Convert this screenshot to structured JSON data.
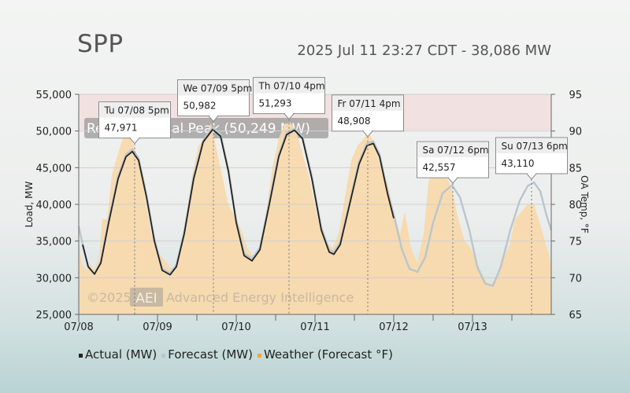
{
  "header": {
    "title": "SPP",
    "status": "2025 Jul 11 23:27 CDT - 38,086 MW"
  },
  "colors": {
    "actual": "#222222",
    "forecast": "#b9c6cc",
    "weather": "#f8d9ad",
    "peak_band": "#f1e1e1"
  },
  "chart_data": {
    "type": "line",
    "x_labels": [
      "07/08",
      "07/09",
      "07/10",
      "07/11",
      "07/12",
      "07/13"
    ],
    "ylabel": "Load, MW",
    "y2label": "OA Temp, °F",
    "ylim": [
      25000,
      55000
    ],
    "y_ticks": [
      "25,000",
      "30,000",
      "35,000",
      "40,000",
      "45,000",
      "50,000",
      "55,000"
    ],
    "y2lim": [
      65,
      95
    ],
    "y2_ticks": [
      "65",
      "70",
      "75",
      "80",
      "85",
      "90",
      "95"
    ],
    "x_range_days": [
      0,
      6
    ],
    "peak_band": {
      "from": 50249,
      "to": 55000,
      "label": "Record Annual Peak (50,249 MW)"
    },
    "watermark": {
      "copyright": "©2025",
      "badge": "AEI",
      "name": "Advanced Energy Intelligence"
    },
    "series": [
      {
        "name": "Actual (MW)",
        "points": [
          [
            0.05,
            34500
          ],
          [
            0.12,
            31500
          ],
          [
            0.2,
            30500
          ],
          [
            0.28,
            32000
          ],
          [
            0.38,
            37500
          ],
          [
            0.5,
            43500
          ],
          [
            0.6,
            46500
          ],
          [
            0.68,
            47200
          ],
          [
            0.76,
            46000
          ],
          [
            0.86,
            41000
          ],
          [
            0.96,
            35000
          ],
          [
            1.06,
            31000
          ],
          [
            1.16,
            30400
          ],
          [
            1.24,
            31500
          ],
          [
            1.34,
            36000
          ],
          [
            1.46,
            43500
          ],
          [
            1.58,
            48500
          ],
          [
            1.7,
            50200
          ],
          [
            1.8,
            49300
          ],
          [
            1.9,
            44500
          ],
          [
            2.0,
            37500
          ],
          [
            2.1,
            33000
          ],
          [
            2.2,
            32300
          ],
          [
            2.3,
            33800
          ],
          [
            2.42,
            40000
          ],
          [
            2.54,
            46500
          ],
          [
            2.64,
            49500
          ],
          [
            2.74,
            50100
          ],
          [
            2.84,
            49000
          ],
          [
            2.96,
            43500
          ],
          [
            3.08,
            36500
          ],
          [
            3.18,
            33500
          ],
          [
            3.24,
            33200
          ],
          [
            3.32,
            34500
          ],
          [
            3.44,
            40000
          ],
          [
            3.56,
            45500
          ],
          [
            3.66,
            48000
          ],
          [
            3.74,
            48300
          ],
          [
            3.82,
            46500
          ],
          [
            3.92,
            41500
          ],
          [
            4.0,
            38100
          ]
        ]
      },
      {
        "name": "Forecast (MW)",
        "points": [
          [
            0.0,
            37000
          ],
          [
            0.05,
            34500
          ],
          [
            0.12,
            31500
          ],
          [
            0.2,
            30500
          ],
          [
            0.28,
            32200
          ],
          [
            0.38,
            37800
          ],
          [
            0.5,
            43800
          ],
          [
            0.6,
            46800
          ],
          [
            0.68,
            47500
          ],
          [
            0.76,
            46300
          ],
          [
            0.86,
            41300
          ],
          [
            0.96,
            35300
          ],
          [
            1.06,
            31200
          ],
          [
            1.16,
            30600
          ],
          [
            1.24,
            31800
          ],
          [
            1.34,
            36300
          ],
          [
            1.46,
            43800
          ],
          [
            1.58,
            48700
          ],
          [
            1.7,
            50500
          ],
          [
            1.8,
            49600
          ],
          [
            1.9,
            44800
          ],
          [
            2.0,
            37800
          ],
          [
            2.1,
            33300
          ],
          [
            2.2,
            32600
          ],
          [
            2.3,
            34100
          ],
          [
            2.42,
            40300
          ],
          [
            2.54,
            46800
          ],
          [
            2.64,
            49800
          ],
          [
            2.74,
            50300
          ],
          [
            2.84,
            49300
          ],
          [
            2.96,
            43800
          ],
          [
            3.08,
            36800
          ],
          [
            3.18,
            33800
          ],
          [
            3.24,
            33500
          ],
          [
            3.32,
            34800
          ],
          [
            3.44,
            40300
          ],
          [
            3.56,
            45800
          ],
          [
            3.66,
            48300
          ],
          [
            3.74,
            48600
          ],
          [
            3.82,
            46800
          ],
          [
            3.92,
            41800
          ],
          [
            4.0,
            38600
          ],
          [
            4.1,
            34000
          ],
          [
            4.2,
            31200
          ],
          [
            4.3,
            30800
          ],
          [
            4.4,
            32800
          ],
          [
            4.5,
            37500
          ],
          [
            4.62,
            41500
          ],
          [
            4.74,
            42600
          ],
          [
            4.84,
            41000
          ],
          [
            4.96,
            36500
          ],
          [
            5.06,
            31500
          ],
          [
            5.16,
            29200
          ],
          [
            5.26,
            28900
          ],
          [
            5.36,
            31500
          ],
          [
            5.48,
            36500
          ],
          [
            5.6,
            40500
          ],
          [
            5.7,
            42500
          ],
          [
            5.78,
            43000
          ],
          [
            5.86,
            41800
          ],
          [
            5.94,
            38500
          ],
          [
            6.0,
            36500
          ]
        ]
      },
      {
        "name": "Weather (Forecast °F)",
        "points": [
          [
            0.0,
            75
          ],
          [
            0.04,
            72
          ],
          [
            0.1,
            71
          ],
          [
            0.14,
            72
          ],
          [
            0.2,
            71
          ],
          [
            0.26,
            73
          ],
          [
            0.3,
            78
          ],
          [
            0.36,
            78
          ],
          [
            0.42,
            84
          ],
          [
            0.5,
            87
          ],
          [
            0.56,
            89
          ],
          [
            0.62,
            90
          ],
          [
            0.7,
            88
          ],
          [
            0.78,
            85
          ],
          [
            0.86,
            80
          ],
          [
            0.92,
            76
          ],
          [
            0.98,
            74
          ],
          [
            1.04,
            73
          ],
          [
            1.12,
            72
          ],
          [
            1.2,
            71
          ],
          [
            1.28,
            73
          ],
          [
            1.36,
            78
          ],
          [
            1.44,
            84
          ],
          [
            1.52,
            88
          ],
          [
            1.6,
            89
          ],
          [
            1.68,
            91
          ],
          [
            1.74,
            88
          ],
          [
            1.82,
            84
          ],
          [
            1.9,
            80
          ],
          [
            2.0,
            78
          ],
          [
            2.08,
            76
          ],
          [
            2.14,
            74
          ],
          [
            2.22,
            73
          ],
          [
            2.3,
            74
          ],
          [
            2.38,
            79
          ],
          [
            2.46,
            85
          ],
          [
            2.54,
            89
          ],
          [
            2.62,
            91
          ],
          [
            2.7,
            91
          ],
          [
            2.76,
            90
          ],
          [
            2.84,
            87
          ],
          [
            2.92,
            84
          ],
          [
            3.0,
            80
          ],
          [
            3.06,
            77
          ],
          [
            3.14,
            75
          ],
          [
            3.22,
            74
          ],
          [
            3.3,
            76
          ],
          [
            3.38,
            81
          ],
          [
            3.46,
            86
          ],
          [
            3.54,
            88
          ],
          [
            3.62,
            89
          ],
          [
            3.68,
            90
          ],
          [
            3.76,
            88
          ],
          [
            3.84,
            85
          ],
          [
            3.92,
            83
          ],
          [
            4.0,
            79
          ],
          [
            4.08,
            76
          ],
          [
            4.14,
            79
          ],
          [
            4.22,
            74
          ],
          [
            4.3,
            72
          ],
          [
            4.38,
            76
          ],
          [
            4.44,
            83
          ],
          [
            4.52,
            85
          ],
          [
            4.6,
            86
          ],
          [
            4.66,
            84
          ],
          [
            4.74,
            82
          ],
          [
            4.82,
            78
          ],
          [
            4.9,
            75
          ],
          [
            4.98,
            74
          ],
          [
            5.06,
            72
          ],
          [
            5.14,
            70
          ],
          [
            5.22,
            69
          ],
          [
            5.3,
            70
          ],
          [
            5.38,
            73
          ],
          [
            5.46,
            74
          ],
          [
            5.54,
            78
          ],
          [
            5.62,
            79
          ],
          [
            5.7,
            80
          ],
          [
            5.78,
            80
          ],
          [
            5.84,
            78
          ],
          [
            5.92,
            75
          ],
          [
            6.0,
            72
          ]
        ]
      }
    ],
    "annotations": [
      {
        "day": "Tu 07/08 5pm",
        "value": "47,971",
        "x": 0.71,
        "y": 47971,
        "highlight": false
      },
      {
        "day": "We 07/09 5pm",
        "value": "50,982",
        "x": 1.71,
        "y": 50982,
        "highlight": false
      },
      {
        "day": "Th 07/10 4pm",
        "value": "51,293",
        "x": 2.67,
        "y": 51293,
        "highlight": false
      },
      {
        "day": "Fr 07/11 4pm",
        "value": "48,908",
        "x": 3.67,
        "y": 48908,
        "highlight": true
      },
      {
        "day": "Sa 07/12 6pm",
        "value": "42,557",
        "x": 4.75,
        "y": 42557,
        "highlight": false
      },
      {
        "day": "Su 07/13 6pm",
        "value": "43,110",
        "x": 5.75,
        "y": 43110,
        "highlight": false
      }
    ]
  },
  "legend": {
    "items": [
      {
        "label": "Actual (MW)",
        "color": "#222222"
      },
      {
        "label": "Forecast (MW)",
        "color": "#b9c6cc"
      },
      {
        "label": "Weather (Forecast °F)",
        "color": "#f2a640"
      }
    ]
  }
}
